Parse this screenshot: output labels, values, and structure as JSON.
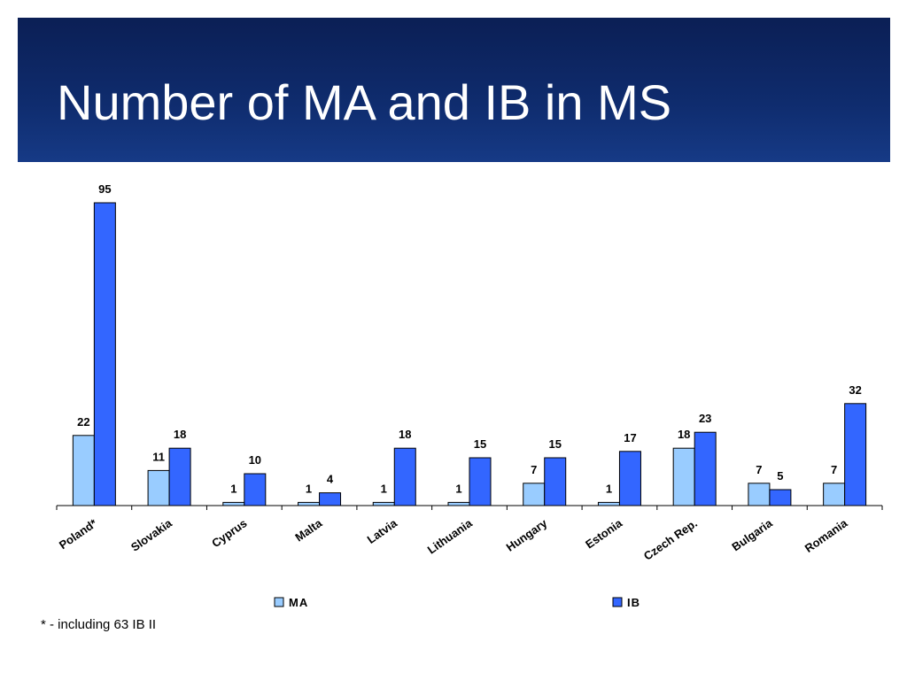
{
  "slide": {
    "title": "Number of MA and IB in MS",
    "footnote": "* - including 63 IB II"
  },
  "colors": {
    "banner": "#0f2c6e",
    "ma": "#99ccff",
    "ib": "#3366ff"
  },
  "chart_data": {
    "type": "bar",
    "title": "",
    "xlabel": "",
    "ylabel": "",
    "ylim": [
      0,
      100
    ],
    "grid": false,
    "legend": "bottom",
    "categories": [
      "Poland*",
      "Slovakia",
      "Cyprus",
      "Malta",
      "Latvia",
      "Lithuania",
      "Hungary",
      "Estonia",
      "Czech Rep.",
      "Bulgaria",
      "Romania"
    ],
    "series": [
      {
        "name": "MA",
        "color": "#99ccff",
        "values": [
          22,
          11,
          1,
          1,
          1,
          1,
          7,
          1,
          18,
          7,
          7
        ]
      },
      {
        "name": "IB",
        "color": "#3366ff",
        "values": [
          95,
          18,
          10,
          4,
          18,
          15,
          15,
          17,
          23,
          5,
          32
        ]
      }
    ]
  }
}
